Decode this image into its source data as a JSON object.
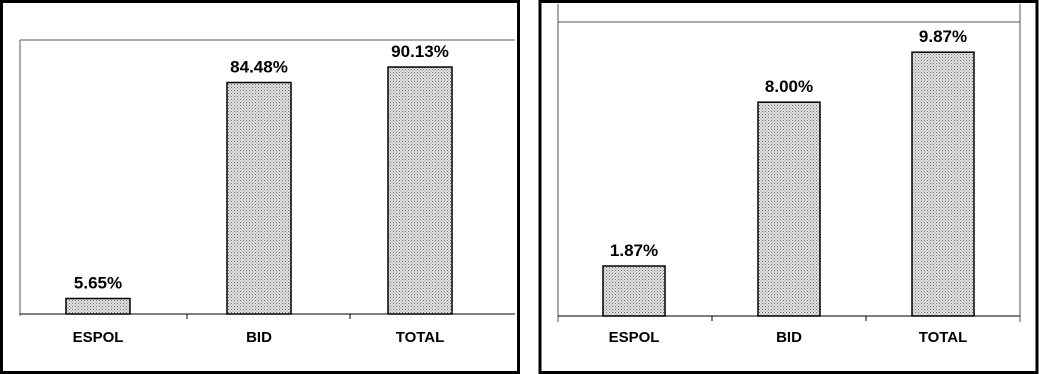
{
  "chart_data": [
    {
      "type": "bar",
      "categories": [
        "ESPOL",
        "BID",
        "TOTAL"
      ],
      "values": [
        5.65,
        84.48,
        90.13
      ],
      "data_labels": [
        "5.65%",
        "84.48%",
        "90.13%"
      ],
      "ylim": [
        0,
        100
      ],
      "grid": false,
      "bar_fill": "dotted-gray"
    },
    {
      "type": "bar",
      "categories": [
        "ESPOL",
        "BID",
        "TOTAL"
      ],
      "values": [
        1.87,
        8.0,
        9.87
      ],
      "data_labels": [
        "1.87%",
        "8.00%",
        "9.87%"
      ],
      "ylim": [
        0,
        11
      ],
      "grid": false,
      "bar_fill": "dotted-gray"
    }
  ],
  "colors": {
    "bar_fill": "#d8d8d8",
    "bar_stroke": "#000000",
    "background": "#ffffff"
  }
}
